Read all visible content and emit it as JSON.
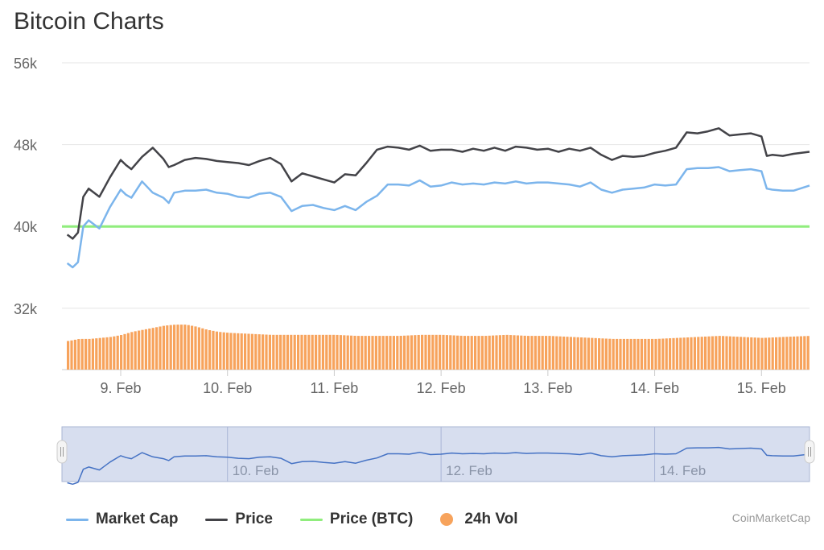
{
  "title": "Bitcoin Charts",
  "credit": "CoinMarketCap",
  "colors": {
    "market_cap": "#7cb5ec",
    "price": "#434348",
    "price_btc": "#90ed7d",
    "volume": "#f7a35c",
    "grid": "#e6e6e6",
    "navigator_bg": "#c9d3ea",
    "navigator_line": "#4572c4"
  },
  "legend": [
    {
      "name": "Market Cap",
      "symbol": "line",
      "color": "#7cb5ec"
    },
    {
      "name": "Price",
      "symbol": "line",
      "color": "#434348"
    },
    {
      "name": "Price (BTC)",
      "symbol": "line",
      "color": "#90ed7d"
    },
    {
      "name": "24h Vol",
      "symbol": "dot",
      "color": "#f7a35c"
    }
  ],
  "chart_data": {
    "type": "line",
    "title": "Bitcoin Charts",
    "y_ticks": [
      "56k",
      "48k",
      "40k",
      "32k"
    ],
    "ylim": [
      26000,
      56000
    ],
    "y_tick_values": [
      56000,
      48000,
      40000,
      32000
    ],
    "x_ticks": [
      "9. Feb",
      "10. Feb",
      "11. Feb",
      "12. Feb",
      "13. Feb",
      "14. Feb",
      "15. Feb"
    ],
    "x_tick_days": [
      9,
      10,
      11,
      12,
      13,
      14,
      15
    ],
    "xlim_days": [
      8.45,
      15.45
    ],
    "navigator_labels": [
      "10. Feb",
      "12. Feb",
      "14. Feb"
    ],
    "navigator_label_days": [
      10,
      12,
      14
    ],
    "series": [
      {
        "name": "Price",
        "x_days": [
          8.5,
          8.55,
          8.6,
          8.65,
          8.7,
          8.8,
          8.9,
          9.0,
          9.05,
          9.1,
          9.2,
          9.3,
          9.4,
          9.45,
          9.5,
          9.6,
          9.7,
          9.8,
          9.9,
          10.0,
          10.1,
          10.2,
          10.3,
          10.4,
          10.5,
          10.6,
          10.7,
          10.8,
          10.9,
          11.0,
          11.1,
          11.2,
          11.3,
          11.4,
          11.5,
          11.6,
          11.7,
          11.8,
          11.9,
          12.0,
          12.1,
          12.2,
          12.3,
          12.4,
          12.5,
          12.6,
          12.7,
          12.8,
          12.9,
          13.0,
          13.1,
          13.2,
          13.3,
          13.4,
          13.5,
          13.6,
          13.7,
          13.8,
          13.9,
          14.0,
          14.1,
          14.2,
          14.3,
          14.4,
          14.5,
          14.6,
          14.7,
          14.8,
          14.9,
          15.0,
          15.05,
          15.1,
          15.2,
          15.3,
          15.45
        ],
        "values": [
          39200,
          38800,
          39400,
          42900,
          43700,
          42900,
          44800,
          46500,
          46000,
          45600,
          46800,
          47700,
          46600,
          45800,
          46000,
          46500,
          46700,
          46600,
          46400,
          46300,
          46200,
          46000,
          46400,
          46700,
          46100,
          44400,
          45200,
          44900,
          44600,
          44300,
          45100,
          45000,
          46200,
          47500,
          47800,
          47700,
          47500,
          47900,
          47400,
          47500,
          47500,
          47300,
          47600,
          47400,
          47700,
          47400,
          47800,
          47700,
          47500,
          47600,
          47300,
          47600,
          47400,
          47700,
          47000,
          46500,
          46900,
          46800,
          46900,
          47200,
          47400,
          47700,
          49200,
          49100,
          49300,
          49600,
          48900,
          49000,
          49100,
          48800,
          46900,
          47000,
          46900,
          47100,
          47300
        ]
      },
      {
        "name": "Market Cap",
        "x_days": [
          8.5,
          8.55,
          8.6,
          8.65,
          8.7,
          8.8,
          8.9,
          9.0,
          9.05,
          9.1,
          9.2,
          9.3,
          9.4,
          9.45,
          9.5,
          9.6,
          9.7,
          9.8,
          9.9,
          10.0,
          10.1,
          10.2,
          10.3,
          10.4,
          10.5,
          10.6,
          10.7,
          10.8,
          10.9,
          11.0,
          11.1,
          11.2,
          11.3,
          11.4,
          11.5,
          11.6,
          11.7,
          11.8,
          11.9,
          12.0,
          12.1,
          12.2,
          12.3,
          12.4,
          12.5,
          12.6,
          12.7,
          12.8,
          12.9,
          13.0,
          13.1,
          13.2,
          13.3,
          13.4,
          13.5,
          13.6,
          13.7,
          13.8,
          13.9,
          14.0,
          14.1,
          14.2,
          14.3,
          14.4,
          14.5,
          14.6,
          14.7,
          14.8,
          14.9,
          15.0,
          15.05,
          15.1,
          15.2,
          15.3,
          15.45
        ],
        "values": [
          36400,
          36000,
          36500,
          40000,
          40600,
          39800,
          41900,
          43600,
          43100,
          42800,
          44400,
          43300,
          42800,
          42300,
          43300,
          43500,
          43500,
          43600,
          43300,
          43200,
          42900,
          42800,
          43200,
          43300,
          42900,
          41500,
          42000,
          42100,
          41800,
          41600,
          42000,
          41600,
          42400,
          43000,
          44100,
          44100,
          44000,
          44500,
          43900,
          44000,
          44300,
          44100,
          44200,
          44100,
          44300,
          44200,
          44400,
          44200,
          44300,
          44300,
          44200,
          44100,
          43900,
          44300,
          43600,
          43300,
          43600,
          43700,
          43800,
          44100,
          44000,
          44100,
          45600,
          45700,
          45700,
          45800,
          45400,
          45500,
          45600,
          45400,
          43700,
          43600,
          43500,
          43500,
          44000
        ]
      },
      {
        "name": "Price (BTC)",
        "x_days": [
          8.45,
          15.45
        ],
        "values": [
          40000,
          40000
        ]
      },
      {
        "name": "24h Vol",
        "x_days": [
          8.5,
          8.6,
          8.7,
          8.8,
          8.9,
          9.0,
          9.1,
          9.2,
          9.3,
          9.4,
          9.5,
          9.6,
          9.7,
          9.8,
          9.9,
          10.0,
          10.2,
          10.4,
          10.6,
          10.8,
          11.0,
          11.2,
          11.4,
          11.6,
          11.8,
          12.0,
          12.2,
          12.4,
          12.6,
          12.8,
          13.0,
          13.2,
          13.4,
          13.6,
          13.8,
          14.0,
          14.2,
          14.4,
          14.6,
          14.8,
          15.0,
          15.2,
          15.45
        ],
        "values": [
          28800,
          29000,
          29000,
          29100,
          29200,
          29400,
          29700,
          29900,
          30100,
          30300,
          30400,
          30400,
          30200,
          29900,
          29700,
          29600,
          29500,
          29400,
          29400,
          29400,
          29400,
          29300,
          29300,
          29300,
          29400,
          29400,
          29300,
          29300,
          29400,
          29300,
          29300,
          29200,
          29100,
          29000,
          29000,
          29000,
          29100,
          29200,
          29300,
          29200,
          29100,
          29200,
          29300
        ]
      }
    ]
  }
}
